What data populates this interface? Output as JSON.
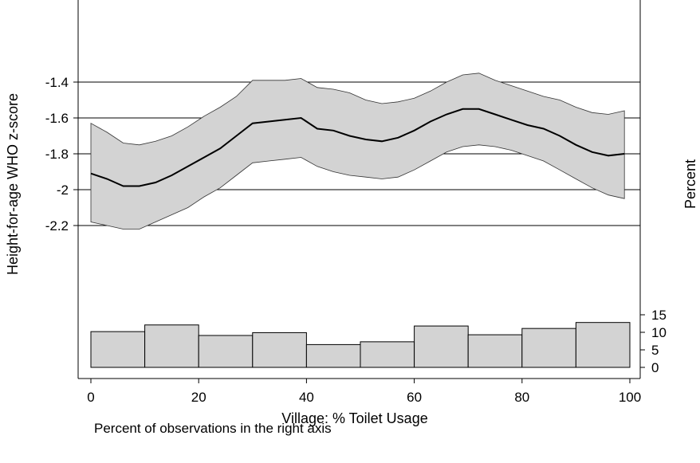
{
  "chart_data": {
    "type": "line",
    "xlabel": "Village: % Toilet Usage",
    "ylabel_left": "Height-for-age WHO z-score",
    "ylabel_right": "Percent",
    "note": "Percent of observations in the right axis",
    "x_ticks": [
      "0",
      "20",
      "40",
      "60",
      "80",
      "100"
    ],
    "x_tick_values": [
      0,
      20,
      40,
      60,
      80,
      100
    ],
    "left_ticks": [
      "-1.4",
      "-1.6",
      "-1.8",
      "-2",
      "-2.2"
    ],
    "left_tick_values": [
      -1.4,
      -1.6,
      -1.8,
      -2.0,
      -2.2
    ],
    "right_ticks": [
      "15",
      "10",
      "5",
      "0"
    ],
    "right_tick_values": [
      15,
      10,
      5,
      0
    ],
    "grid": "horizontal at left-axis ticks",
    "xlim": [
      0,
      100
    ],
    "left_ylim": [
      -2.2,
      -1.4
    ],
    "right_ylim": [
      0,
      15
    ],
    "colors": {
      "band": "#d3d3d3",
      "line": "#000000",
      "bar": "#d3d3d3",
      "grid": "#000000"
    },
    "series": [
      {
        "x": [
          0,
          3,
          6,
          9,
          12,
          15,
          18,
          21,
          24,
          27,
          30,
          33,
          36,
          39,
          42,
          45,
          48,
          51,
          54,
          57,
          60,
          63,
          66,
          69,
          72,
          75,
          78,
          81,
          84,
          87,
          90,
          93,
          96,
          99
        ],
        "y": [
          -1.91,
          -1.94,
          -1.98,
          -1.98,
          -1.96,
          -1.92,
          -1.87,
          -1.82,
          -1.77,
          -1.7,
          -1.63,
          -1.62,
          -1.61,
          -1.6,
          -1.66,
          -1.67,
          -1.7,
          -1.72,
          -1.73,
          -1.71,
          -1.67,
          -1.62,
          -1.58,
          -1.55,
          -1.55,
          -1.58,
          -1.61,
          -1.64,
          -1.66,
          -1.7,
          -1.75,
          -1.79,
          -1.81,
          -1.8
        ],
        "upper": [
          -1.63,
          -1.68,
          -1.74,
          -1.75,
          -1.73,
          -1.7,
          -1.65,
          -1.59,
          -1.54,
          -1.48,
          -1.39,
          -1.39,
          -1.39,
          -1.38,
          -1.43,
          -1.44,
          -1.46,
          -1.5,
          -1.52,
          -1.51,
          -1.49,
          -1.45,
          -1.4,
          -1.36,
          -1.35,
          -1.39,
          -1.42,
          -1.45,
          -1.48,
          -1.5,
          -1.54,
          -1.57,
          -1.58,
          -1.56
        ],
        "lower": [
          -2.18,
          -2.2,
          -2.22,
          -2.22,
          -2.18,
          -2.14,
          -2.1,
          -2.04,
          -1.99,
          -1.92,
          -1.85,
          -1.84,
          -1.83,
          -1.82,
          -1.87,
          -1.9,
          -1.92,
          -1.93,
          -1.94,
          -1.93,
          -1.89,
          -1.84,
          -1.79,
          -1.76,
          -1.75,
          -1.76,
          -1.78,
          -1.81,
          -1.84,
          -1.89,
          -1.94,
          -1.99,
          -2.03,
          -2.05
        ]
      }
    ],
    "histogram": {
      "bin_edges": [
        0,
        10,
        20,
        30,
        40,
        50,
        60,
        70,
        80,
        90,
        100
      ],
      "values": [
        10.2,
        12.1,
        9.1,
        9.9,
        6.5,
        7.3,
        11.8,
        9.3,
        11.1,
        12.8
      ]
    }
  }
}
